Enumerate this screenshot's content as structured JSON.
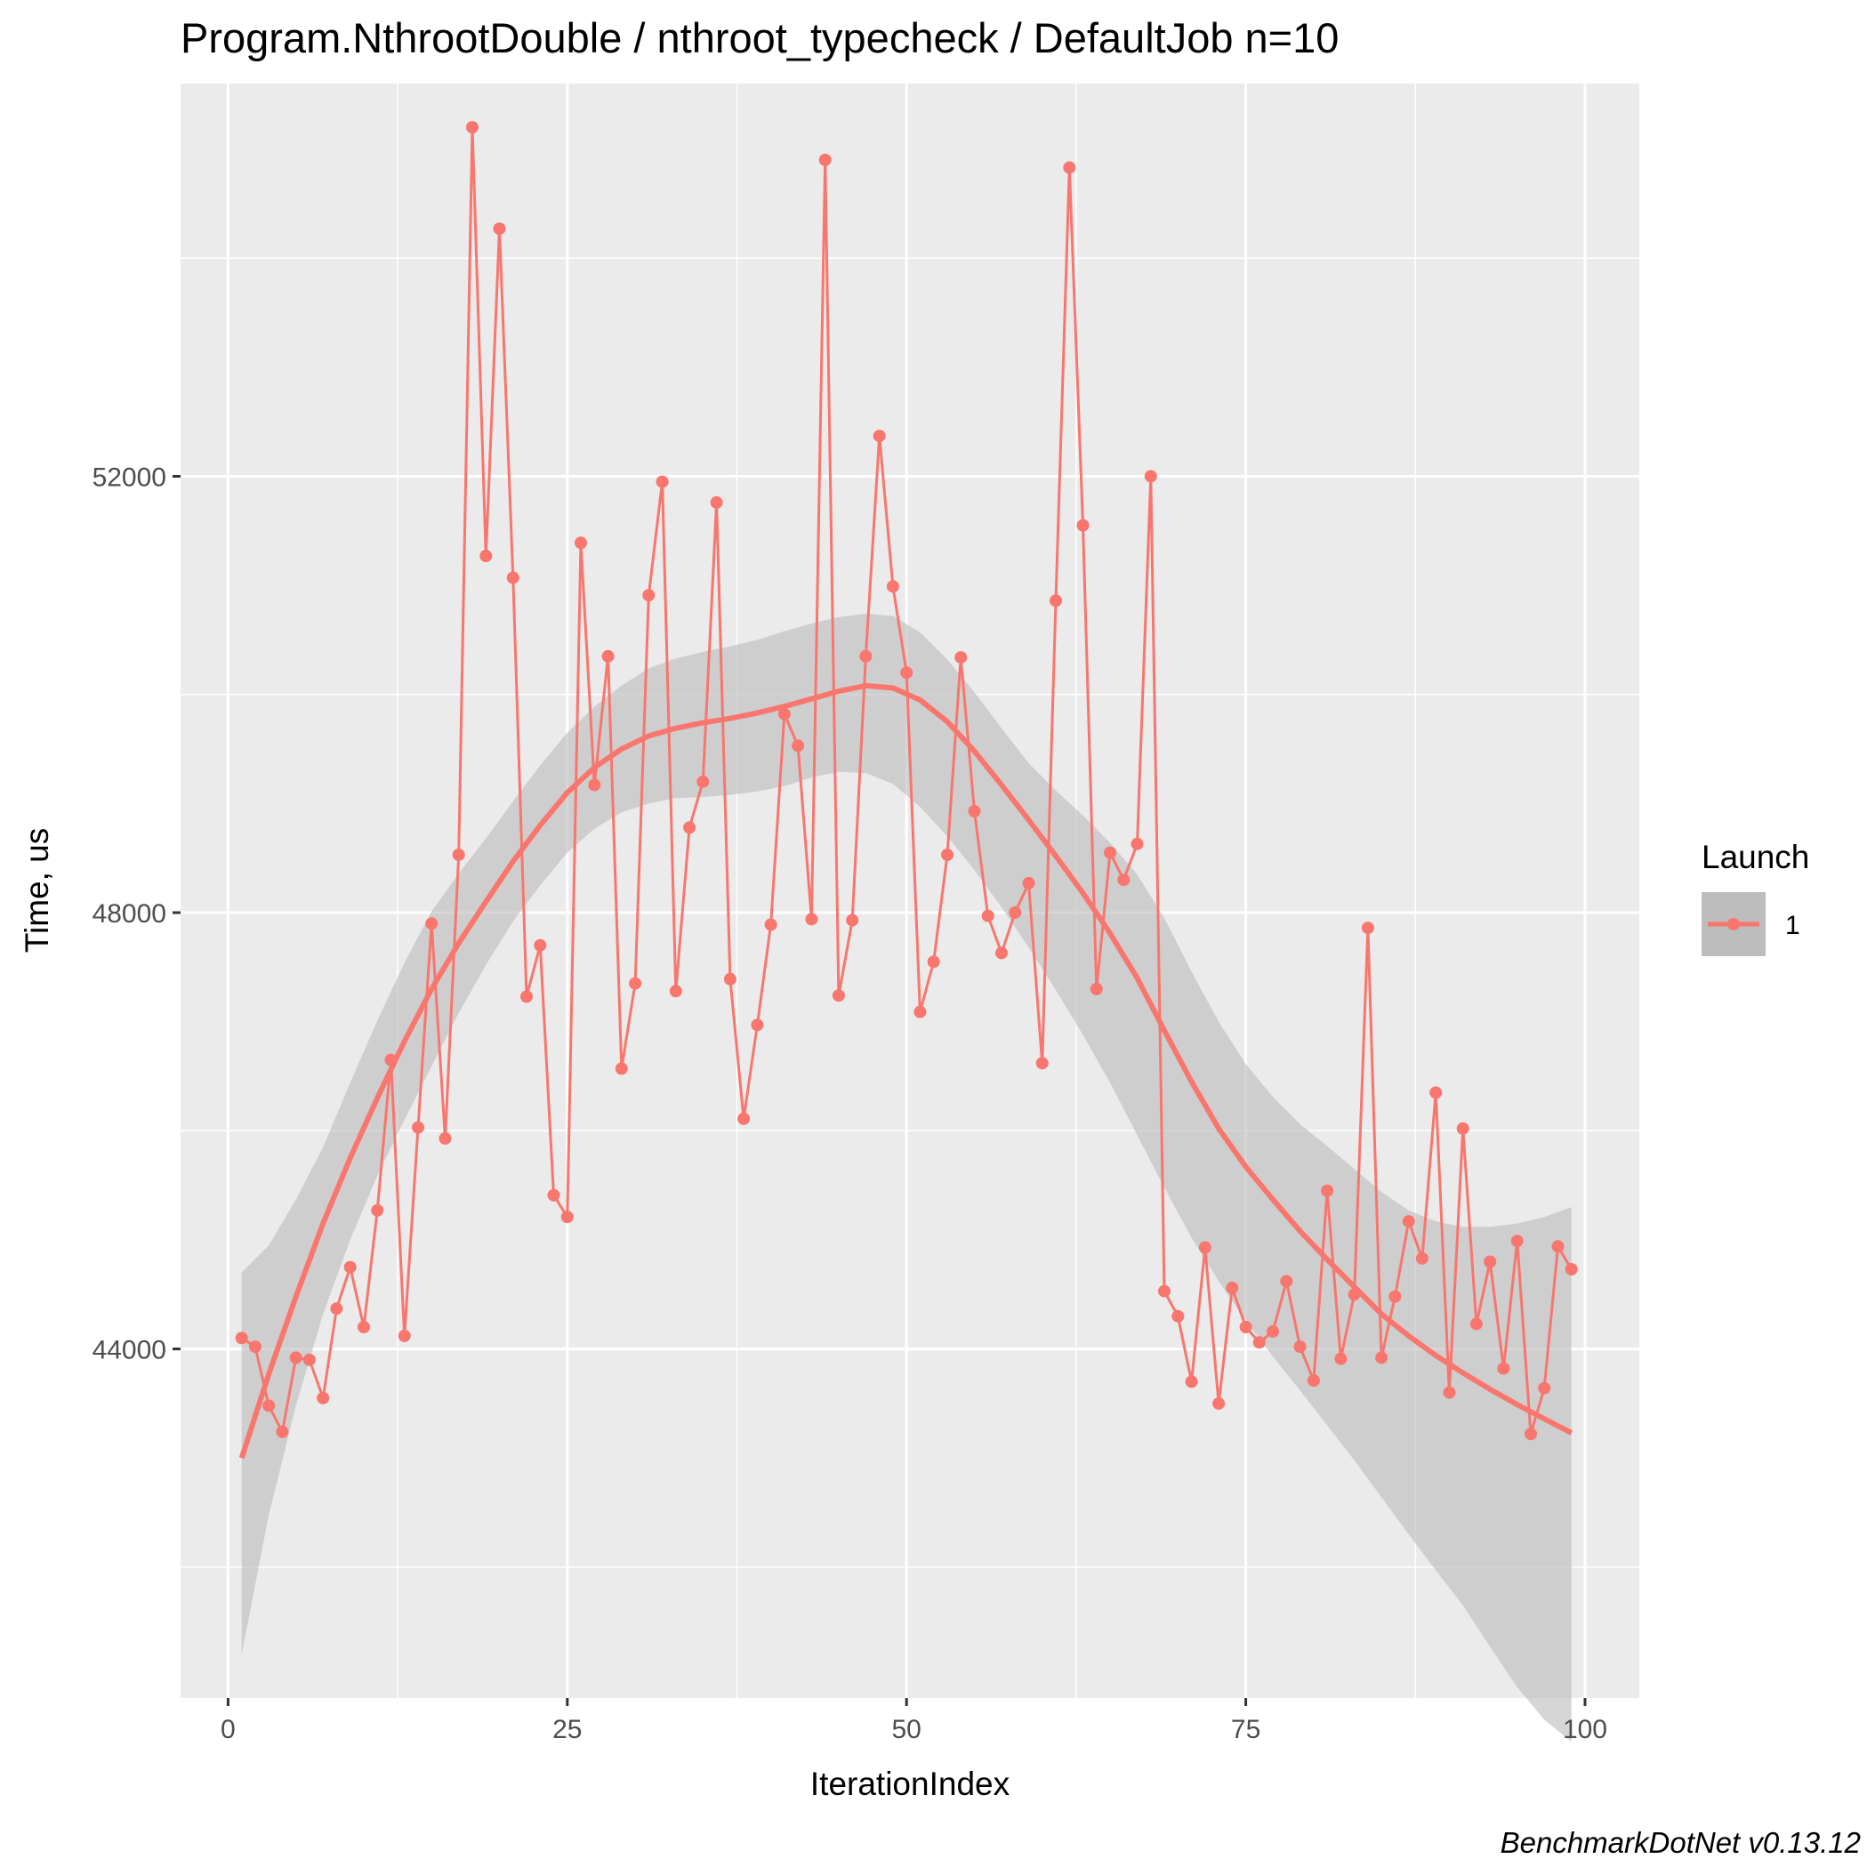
{
  "chart_data": {
    "type": "line",
    "title": "Program.NthrootDouble / nthroot_typecheck / DefaultJob n=10",
    "xlabel": "IterationIndex",
    "ylabel": "Time, us",
    "caption": "BenchmarkDotNet v0.13.12",
    "xlim": [
      -3.5,
      104
    ],
    "ylim": [
      40800,
      55600
    ],
    "x_ticks": [
      0,
      25,
      50,
      75,
      100
    ],
    "x_tick_labels": [
      "0",
      "25",
      "50",
      "75",
      "100"
    ],
    "y_ticks": [
      44000,
      48000,
      52000
    ],
    "y_tick_labels": [
      "44000",
      "48000",
      "52000"
    ],
    "y_minor_ticks": [
      42000,
      46000,
      50000,
      54000
    ],
    "grid": true,
    "legend": {
      "title": "Launch",
      "position": "right",
      "entries": [
        "1"
      ]
    },
    "colors": {
      "series": "#F8766D",
      "band": "#bdbdbd",
      "panel": "#ebebeb",
      "grid": "#ffffff"
    },
    "series": [
      {
        "name": "1",
        "x": [
          1,
          2,
          3,
          4,
          5,
          6,
          7,
          8,
          9,
          10,
          11,
          12,
          13,
          14,
          15,
          16,
          17,
          18,
          19,
          20,
          21,
          22,
          23,
          24,
          25,
          26,
          27,
          28,
          29,
          30,
          31,
          32,
          33,
          34,
          35,
          36,
          37,
          38,
          39,
          40,
          41,
          42,
          43,
          44,
          45,
          46,
          47,
          48,
          49,
          50,
          51,
          52,
          53,
          54,
          55,
          56,
          57,
          58,
          59,
          60,
          61,
          62,
          63,
          64,
          65,
          66,
          67,
          68,
          69,
          70,
          71,
          72,
          73,
          74,
          75,
          76,
          77,
          78,
          79,
          80,
          81,
          82,
          83,
          84,
          85,
          86,
          87,
          88,
          89,
          90,
          91,
          92,
          93,
          94,
          95,
          96,
          97,
          98,
          99
        ],
        "y": [
          44100,
          44020,
          43480,
          43240,
          43920,
          43900,
          43550,
          44370,
          44750,
          44200,
          45270,
          46650,
          44120,
          46030,
          47900,
          45930,
          48530,
          55200,
          51270,
          54270,
          51070,
          47230,
          47700,
          45410,
          45210,
          51390,
          49170,
          50350,
          46570,
          47350,
          50910,
          51950,
          47280,
          48780,
          49200,
          51760,
          47390,
          46110,
          46970,
          47890,
          49820,
          49530,
          47940,
          54900,
          47240,
          47930,
          50350,
          52370,
          50990,
          50200,
          47090,
          47550,
          48530,
          50340,
          48930,
          47970,
          47630,
          48000,
          48270,
          46620,
          50860,
          54830,
          51550,
          47300,
          48550,
          48300,
          48630,
          52000,
          44530,
          44300,
          43700,
          44930,
          43500,
          44560,
          44200,
          44060,
          44160,
          44620,
          44020,
          43710,
          45450,
          43910,
          44500,
          47860,
          43920,
          44480,
          45170,
          44830,
          46350,
          43600,
          46020,
          44230,
          44800,
          43820,
          44990,
          43220,
          43640,
          44940,
          44730
        ],
        "smooth": {
          "x": [
            1,
            3,
            5,
            7,
            9,
            11,
            13,
            15,
            17,
            19,
            21,
            23,
            25,
            27,
            29,
            31,
            33,
            35,
            37,
            39,
            41,
            43,
            45,
            47,
            49,
            51,
            53,
            55,
            57,
            59,
            61,
            63,
            65,
            67,
            69,
            71,
            73,
            75,
            77,
            79,
            81,
            83,
            85,
            87,
            89,
            91,
            93,
            95,
            97,
            99
          ],
          "y": [
            43000,
            43770,
            44480,
            45150,
            45750,
            46300,
            46820,
            47300,
            47720,
            48100,
            48470,
            48800,
            49100,
            49330,
            49500,
            49620,
            49690,
            49740,
            49780,
            49830,
            49890,
            49960,
            50030,
            50080,
            50060,
            49950,
            49750,
            49480,
            49170,
            48850,
            48520,
            48180,
            47810,
            47400,
            46920,
            46450,
            46020,
            45670,
            45370,
            45080,
            44820,
            44570,
            44320,
            44120,
            43940,
            43780,
            43630,
            43490,
            43360,
            43230
          ],
          "lower": [
            41200,
            42480,
            43480,
            44320,
            45000,
            45590,
            46100,
            46590,
            47080,
            47520,
            47920,
            48250,
            48550,
            48770,
            48920,
            49000,
            49050,
            49060,
            49080,
            49110,
            49160,
            49240,
            49290,
            49280,
            49180,
            48970,
            48700,
            48390,
            48050,
            47680,
            47290,
            46880,
            46440,
            45960,
            45480,
            45020,
            44620,
            44260,
            43930,
            43620,
            43300,
            42980,
            42640,
            42300,
            41970,
            41650,
            41270,
            40900,
            40600,
            40400
          ],
          "upper": [
            44700,
            44950,
            45370,
            45850,
            46440,
            47010,
            47540,
            48010,
            48360,
            48680,
            49020,
            49350,
            49650,
            49890,
            50080,
            50240,
            50330,
            50390,
            50440,
            50500,
            50580,
            50650,
            50710,
            50740,
            50720,
            50570,
            50320,
            50020,
            49690,
            49370,
            49120,
            48890,
            48640,
            48350,
            47950,
            47460,
            47000,
            46610,
            46310,
            46060,
            45860,
            45650,
            45440,
            45270,
            45170,
            45120,
            45120,
            45150,
            45210,
            45300
          ]
        }
      }
    ]
  }
}
